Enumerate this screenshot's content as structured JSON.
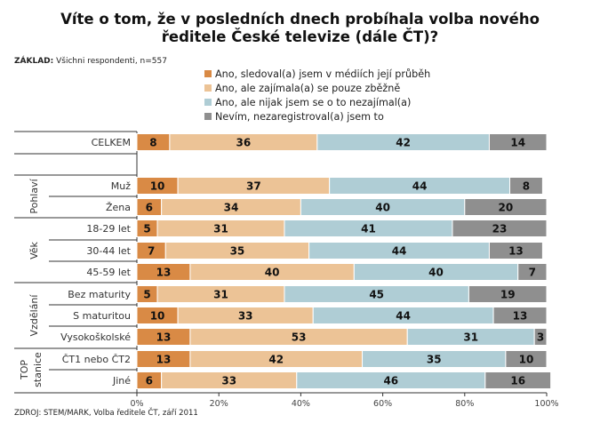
{
  "title_line1": "Víte o tom, že v posledních dnech probíhala volba nového",
  "title_line2": "ředitele České televize (dále ČT)?",
  "base_label": "ZÁKLAD:",
  "base_text": "Všichni respondenti, n=557",
  "source": "ZDROJ: STEM/MARK, Volba ředitele ČT, září 2011",
  "colors": {
    "s1": "#d98a45",
    "s2": "#ecc396",
    "s3": "#afcdd5",
    "s4": "#8f8f8f"
  },
  "chart_data": {
    "type": "bar",
    "orientation": "horizontal",
    "stacked": "percent",
    "title": "Víte o tom, že v posledních dnech probíhala volba nového ředitele České televize (dále ČT)?",
    "xlabel": "",
    "ylabel": "",
    "xlim": [
      0,
      100
    ],
    "x_ticks": [
      "0%",
      "20%",
      "40%",
      "60%",
      "80%",
      "100%"
    ],
    "legend_position": "top",
    "groups": [
      {
        "label": "",
        "rows": [
          "CELKEM"
        ]
      },
      {
        "label": "Pohlaví",
        "rows": [
          "Muž",
          "Žena"
        ]
      },
      {
        "label": "Věk",
        "rows": [
          "18-29 let",
          "30-44 let",
          "45-59 let"
        ]
      },
      {
        "label": "Vzdělání",
        "rows": [
          "Bez maturity",
          "S maturitou",
          "Vysokoškolské"
        ]
      },
      {
        "label": "TOP stanice",
        "rows": [
          "ČT1 nebo ČT2",
          "Jiné"
        ]
      }
    ],
    "categories": [
      "CELKEM",
      "Muž",
      "Žena",
      "18-29 let",
      "30-44 let",
      "45-59 let",
      "Bez maturity",
      "S maturitou",
      "Vysokoškolské",
      "ČT1 nebo ČT2",
      "Jiné"
    ],
    "series": [
      {
        "name": "Ano, sledoval(a) jsem v médiích její průběh",
        "values": [
          8,
          10,
          6,
          5,
          7,
          13,
          5,
          10,
          13,
          13,
          6
        ]
      },
      {
        "name": "Ano, ale zajímala(a) se pouze zběžně",
        "values": [
          36,
          37,
          34,
          31,
          35,
          40,
          31,
          33,
          53,
          42,
          33
        ]
      },
      {
        "name": "Ano, ale nijak jsem se o to nezajímal(a)",
        "values": [
          42,
          44,
          40,
          41,
          44,
          40,
          45,
          44,
          31,
          35,
          46
        ]
      },
      {
        "name": "Nevím, nezaregistroval(a) jsem to",
        "values": [
          14,
          8,
          20,
          23,
          13,
          7,
          19,
          13,
          3,
          10,
          16
        ]
      }
    ]
  }
}
